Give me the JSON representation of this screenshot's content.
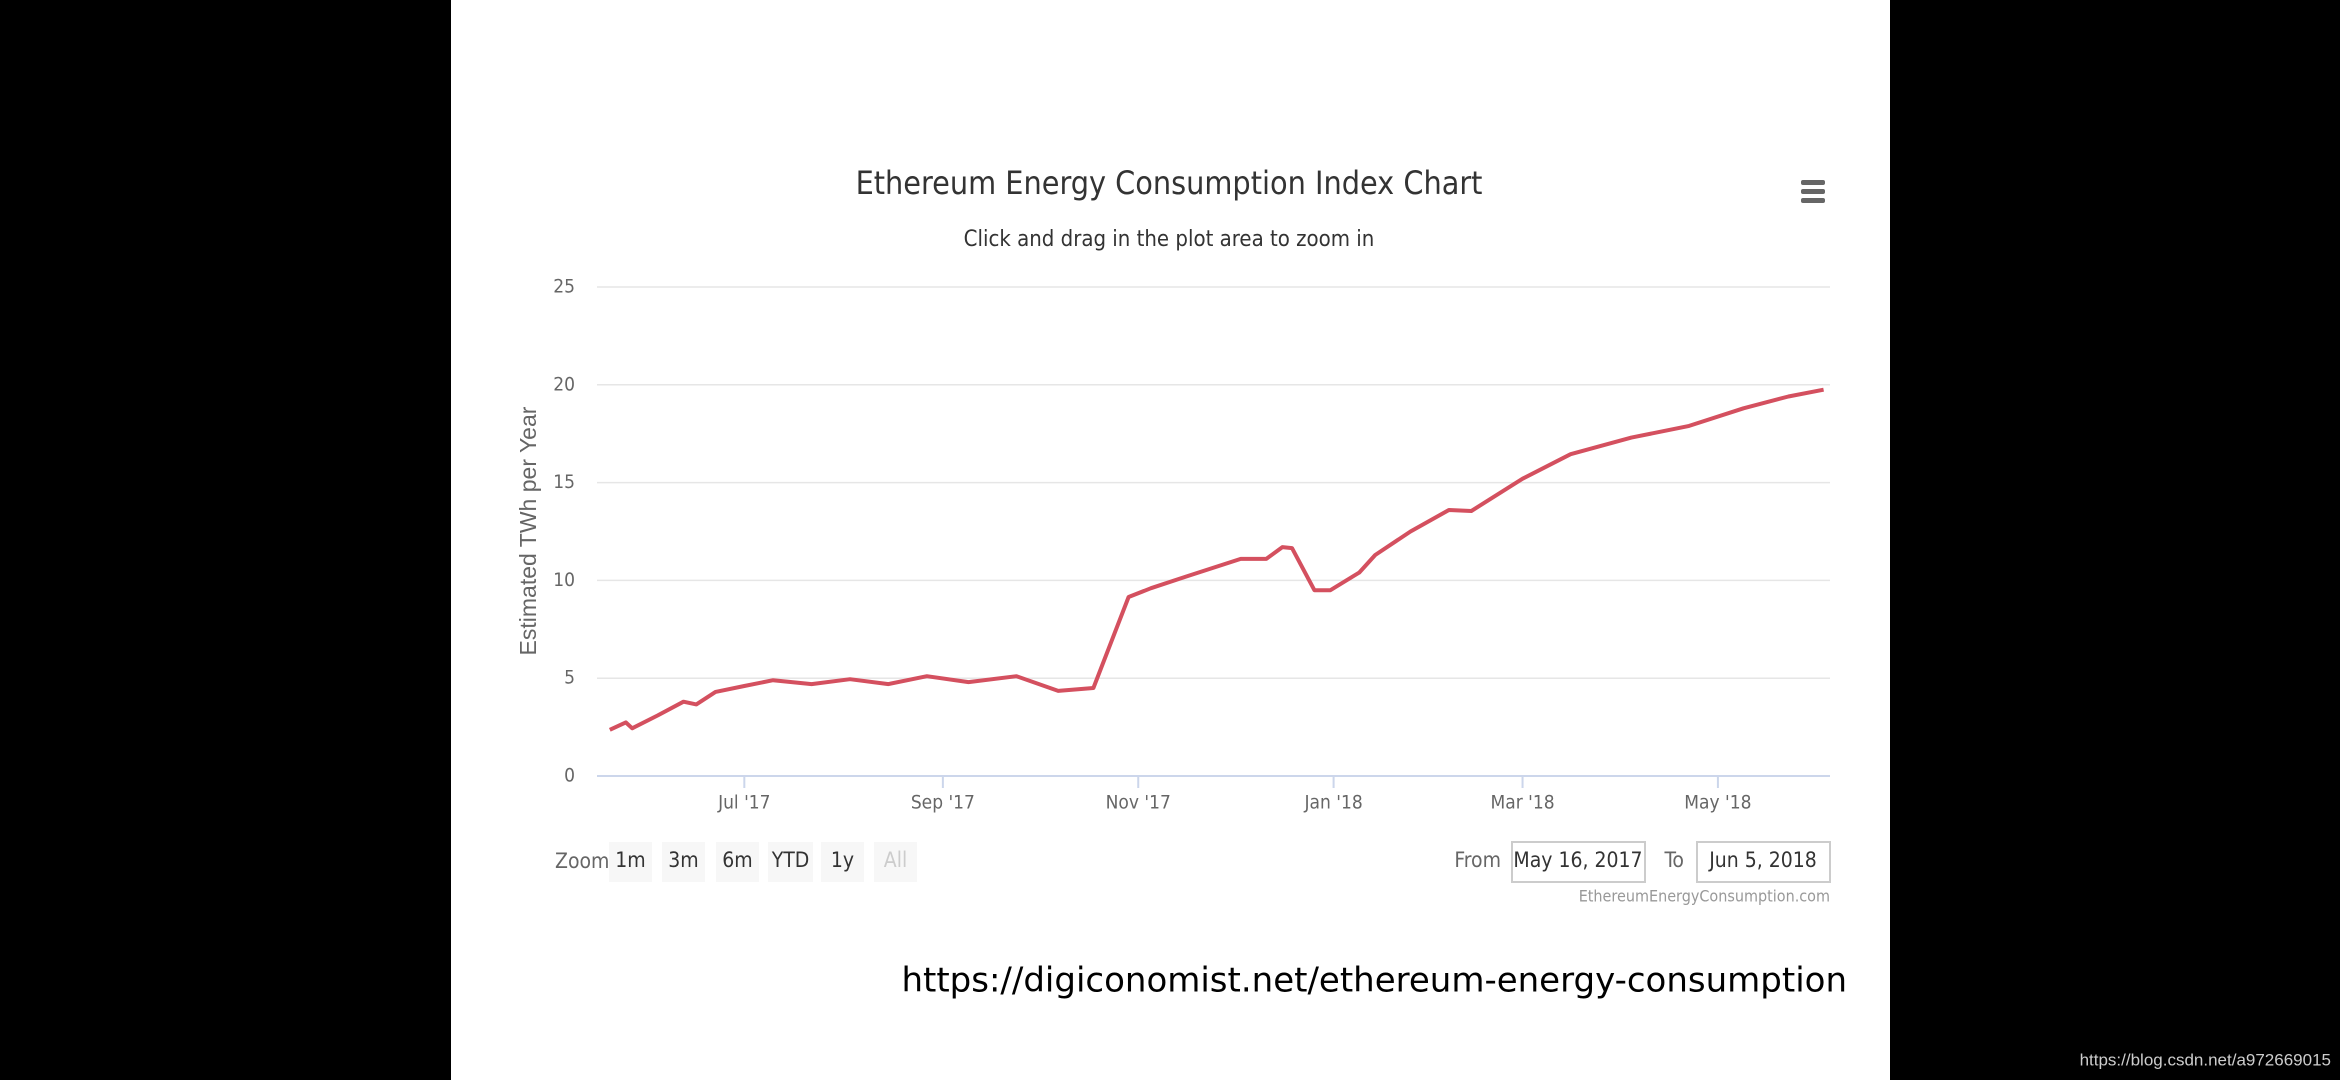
{
  "chart_data": {
    "type": "line",
    "title": "Ethereum Energy Consumption Index Chart",
    "subtitle": "Click and drag in the plot area to zoom in",
    "y_label": "Estimated TWh per Year",
    "x": [
      "2017-05-20",
      "2017-05-25",
      "2017-05-27",
      "2017-06-04",
      "2017-06-12",
      "2017-06-16",
      "2017-06-22",
      "2017-07-01",
      "2017-07-10",
      "2017-07-22",
      "2017-08-03",
      "2017-08-15",
      "2017-08-27",
      "2017-09-09",
      "2017-09-24",
      "2017-10-07",
      "2017-10-18",
      "2017-10-29",
      "2017-11-05",
      "2017-11-16",
      "2017-12-03",
      "2017-12-11",
      "2017-12-16",
      "2017-12-19",
      "2017-12-26",
      "2017-12-31",
      "2018-01-09",
      "2018-01-14",
      "2018-01-25",
      "2018-02-06",
      "2018-02-13",
      "2018-03-01",
      "2018-03-16",
      "2018-04-04",
      "2018-04-22",
      "2018-05-09",
      "2018-05-23",
      "2018-06-03"
    ],
    "values": [
      2.36,
      2.74,
      2.44,
      3.1,
      3.8,
      3.66,
      4.3,
      4.6,
      4.9,
      4.7,
      4.95,
      4.7,
      5.1,
      4.8,
      5.1,
      4.35,
      4.5,
      9.15,
      9.6,
      10.2,
      11.1,
      11.1,
      11.7,
      11.65,
      9.5,
      9.5,
      10.4,
      11.3,
      12.5,
      13.6,
      13.55,
      15.2,
      16.45,
      17.3,
      17.9,
      18.8,
      19.4,
      19.75
    ],
    "color": "#d4505f",
    "xlim": [
      "2017-05-16",
      "2018-06-05"
    ],
    "xticks": [
      {
        "value": "2017-07-01",
        "label": "Jul '17"
      },
      {
        "value": "2017-09-01",
        "label": "Sep '17"
      },
      {
        "value": "2017-11-01",
        "label": "Nov '17"
      },
      {
        "value": "2018-01-01",
        "label": "Jan '18"
      },
      {
        "value": "2018-03-01",
        "label": "Mar '18"
      },
      {
        "value": "2018-05-01",
        "label": "May '18"
      }
    ],
    "ylim": [
      0,
      25
    ],
    "yticks": [
      0,
      5,
      10,
      15,
      20,
      25
    ],
    "grid": true
  },
  "range_selector": {
    "zoom_label": "Zoom",
    "buttons": [
      "1m",
      "3m",
      "6m",
      "YTD",
      "1y",
      "All"
    ],
    "from_label": "From",
    "from": "May 16, 2017",
    "to_label": "To",
    "to": "Jun 5, 2018"
  },
  "credits": "EthereumEnergyConsumption.com",
  "caption": "https://digiconomist.net/ethereum-energy-consumption",
  "watermark": "https://blog.csdn.net/a972669015"
}
